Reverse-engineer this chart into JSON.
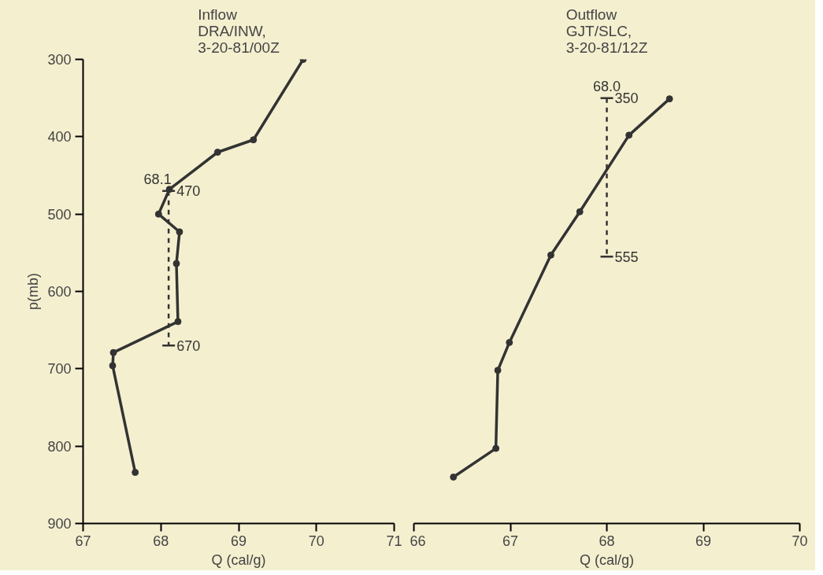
{
  "chart_data": [
    {
      "type": "line",
      "title": "Inflow\nDRA/INW,\n3-20-81/00Z",
      "xlabel": "Q (cal/g)",
      "ylabel": "p(mb)",
      "xlim": [
        67,
        71
      ],
      "xticks": [
        67,
        68,
        69,
        70,
        71
      ],
      "ylim": [
        900,
        300
      ],
      "yticks": [
        300,
        400,
        500,
        600,
        700,
        800,
        900
      ],
      "marker": "circle",
      "grid": false,
      "series": [
        {
          "color": "#333333",
          "x": [
            69.83,
            69.19,
            68.73,
            68.11,
            67.97,
            68.24,
            68.2,
            68.22,
            67.39,
            67.38,
            67.67
          ],
          "values": [
            300,
            404,
            420,
            468,
            500,
            523,
            564,
            639,
            679,
            696,
            834
          ]
        },
        {
          "color": "#333333",
          "line_style": "dashed",
          "marker": "none",
          "x": [
            68.1,
            68.1
          ],
          "values": [
            470,
            670
          ]
        }
      ],
      "annotations": [
        "68.1",
        "470",
        "670"
      ]
    },
    {
      "type": "line",
      "title": "Outflow\nGJT/SLC,\n3-20-81/12Z",
      "xlabel": "Q (cal/g)",
      "xlim": [
        66,
        70
      ],
      "xticks": [
        66,
        67,
        68,
        69,
        70
      ],
      "ylim": [
        900,
        300
      ],
      "yticks": [
        300,
        400,
        500,
        600,
        700,
        800,
        900
      ],
      "tick_labels": "x",
      "marker": "circle",
      "grid": false,
      "series": [
        {
          "color": "#333333",
          "x": [
            68.65,
            68.23,
            67.72,
            67.42,
            66.99,
            66.87,
            66.85,
            66.41
          ],
          "values": [
            351,
            398,
            497,
            553,
            666,
            702,
            803,
            840
          ]
        },
        {
          "color": "#333333",
          "line_style": "dashed",
          "marker": "none",
          "x": [
            68.0,
            68.0
          ],
          "values": [
            350,
            555
          ]
        }
      ],
      "annotations": [
        "68.0",
        "350",
        "555"
      ]
    }
  ]
}
